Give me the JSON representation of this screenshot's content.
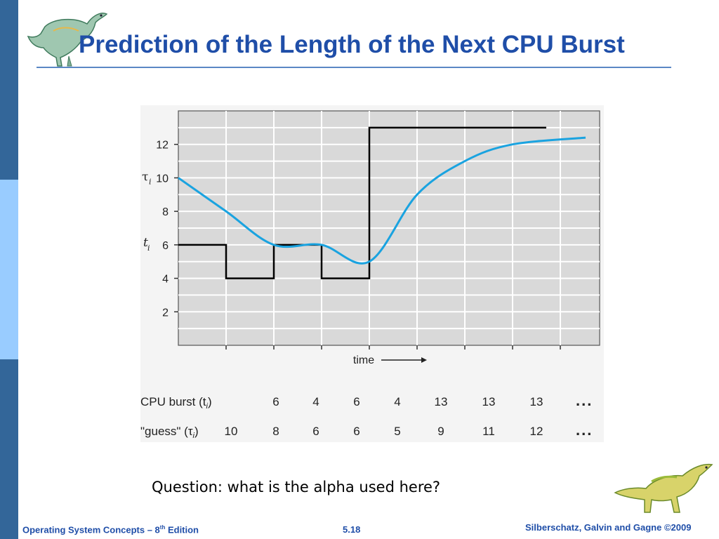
{
  "slide": {
    "title": "Prediction of the Length of the Next CPU Burst",
    "question": "Question: what is the alpha used here?",
    "footer": {
      "left_prefix": "Operating System Concepts – 8",
      "left_sup": "th",
      "left_suffix": " Edition",
      "page": "5.18",
      "right": "Silberschatz, Galvin and Gagne ©2009"
    }
  },
  "colors": {
    "title": "#1f4ea8",
    "sidebar_dark": "#336699",
    "sidebar_light": "#99ccff",
    "plot_background": "#d9d9d9",
    "grid": "#ffffff",
    "burst_line": "#000000",
    "guess_curve": "#1aa3e0"
  },
  "chart_data": {
    "type": "line",
    "title": "",
    "xlabel": "time",
    "ylabel_left_top": "τ",
    "ylabel_left_top_sub": "i",
    "ylabel_left_bottom": "t",
    "ylabel_left_bottom_sub": "i",
    "ylim": [
      0,
      14
    ],
    "yticks": [
      2,
      4,
      6,
      8,
      10,
      12
    ],
    "xlim": [
      0,
      9
    ],
    "grid": true,
    "series": [
      {
        "label": "CPU burst (t_i)",
        "style": "step",
        "values": [
          6,
          4,
          6,
          4,
          13,
          13,
          13,
          13
        ]
      },
      {
        "label": "\"guess\" (τ_i)",
        "style": "smooth",
        "values": [
          10,
          8,
          6,
          6,
          5,
          9,
          11,
          12
        ]
      }
    ],
    "table": {
      "row_labels": [
        "CPU burst (t",
        "\"guess\" (τ"
      ],
      "row_label_subs": [
        "i",
        "i"
      ],
      "row_label_close": [
        ")",
        ")"
      ],
      "burst_values": [
        "6",
        "4",
        "6",
        "4",
        "13",
        "13",
        "13"
      ],
      "guess_values": [
        "10",
        "8",
        "6",
        "6",
        "5",
        "9",
        "11",
        "12"
      ],
      "ellipsis": "..."
    }
  }
}
